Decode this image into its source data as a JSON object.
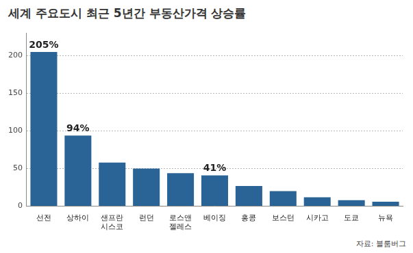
{
  "chart_data": {
    "type": "bar",
    "title": "세계 주요도시 최근 5년간 부동산가격 상승률",
    "categories": [
      "선전",
      "상하이",
      "샌프란시스코",
      "런던",
      "로스앤젤레스",
      "베이징",
      "홍콩",
      "보스턴",
      "시카고",
      "도쿄",
      "뉴욕"
    ],
    "values": [
      205,
      94,
      58,
      50,
      44,
      41,
      27,
      20,
      12,
      8,
      6
    ],
    "value_labels": [
      "205%",
      "94%",
      null,
      null,
      null,
      "41%",
      null,
      null,
      null,
      null,
      null
    ],
    "data_labels": true,
    "color": "#2a6496",
    "ylim": [
      0,
      230
    ],
    "yticks": [
      0,
      50,
      100,
      150,
      200
    ],
    "grid": true,
    "source": "자료: 블룸버그"
  }
}
